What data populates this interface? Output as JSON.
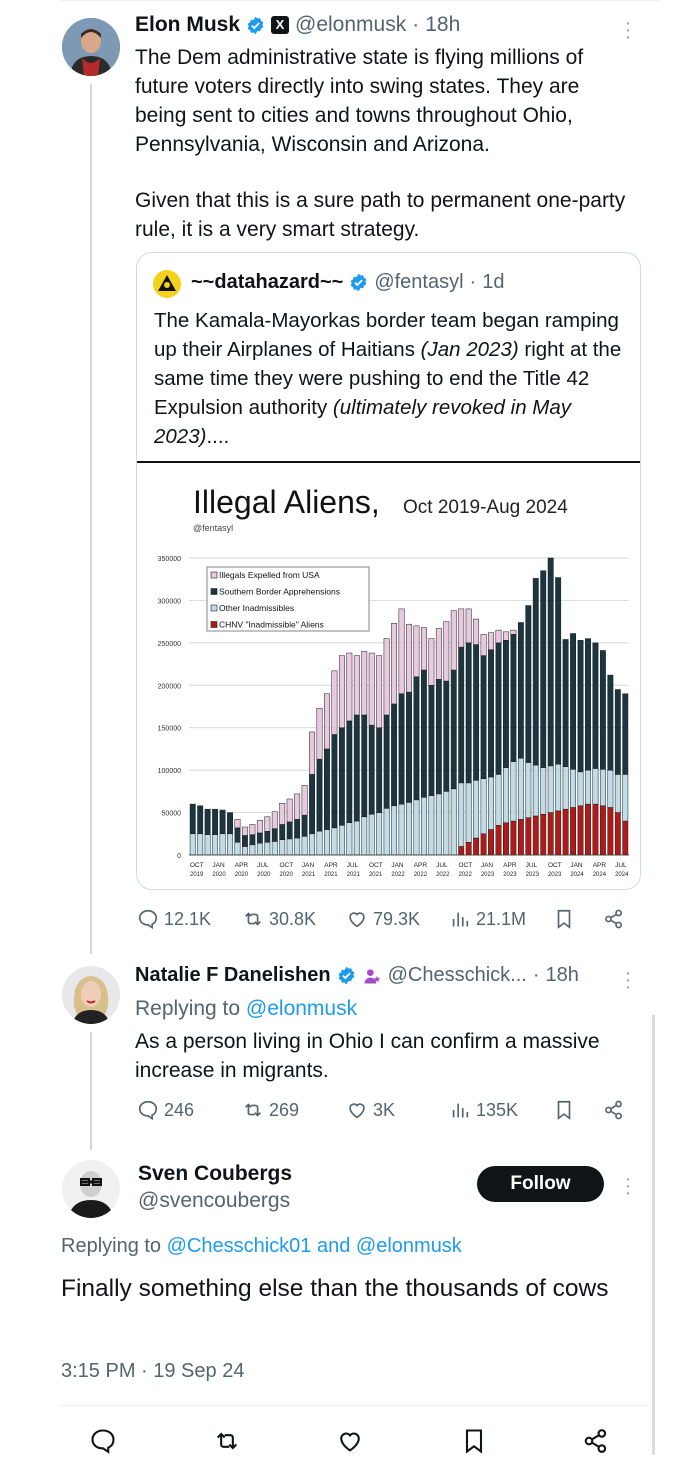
{
  "tweet1": {
    "name": "Elon Musk",
    "handle": "@elonmusk",
    "sep": "·",
    "time": "18h",
    "text1": "The Dem administrative state is flying millions of future voters directly into swing states. They are being sent to cities and towns throughout Ohio, Pennsylvania, Wisconsin and Arizona.",
    "text2": "Given that this is a sure path to permanent one-party rule, it is a very smart strategy.",
    "metrics": {
      "replies": "12.1K",
      "reposts": "30.8K",
      "likes": "79.3K",
      "views": "21.1M"
    }
  },
  "quote": {
    "name": "~~datahazard~~",
    "handle": "@fentasyl",
    "sep": "·",
    "time": "1d",
    "text_a": "The Kamala-Mayorkas border team began ramping up their Airplanes of Haitians ",
    "text_b": "(Jan 2023)",
    "text_c": " right at the same time they were pushing to end the Title 42 Expulsion authority ",
    "text_d": "(ultimately revoked in May 2023)",
    "text_e": "...."
  },
  "tweet2": {
    "name": "Natalie F Danelishen",
    "handle": "@Chesschick...",
    "sep": "·",
    "time": "18h",
    "replying_prefix": "Replying to ",
    "replying_to": "@elonmusk",
    "text": "As a person living in Ohio I can confirm a massive increase in migrants.",
    "metrics": {
      "replies": "246",
      "reposts": "269",
      "likes": "3K",
      "views": "135K"
    }
  },
  "tweet3": {
    "name": "Sven Coubergs",
    "handle": "@svencoubergs",
    "follow_label": "Follow",
    "replying_prefix": "Replying to ",
    "replying_to": "@Chesschick01 and @elonmusk",
    "text": "Finally something else than the thousands of cows",
    "timestamp": "3:15 PM · 19 Sep 24"
  },
  "icons": {
    "reply": "reply-icon",
    "repost": "repost-icon",
    "like": "like-icon",
    "views": "views-icon",
    "bookmark": "bookmark-icon",
    "share": "share-icon",
    "more": "more-dots-icon",
    "verified": "verified-badge-icon"
  },
  "colors": {
    "verified": "#1d9bf0",
    "link": "#1d9bf0",
    "expelled": "#e9c9e0",
    "apprehensions": "#1b3640",
    "other": "#bfdde8",
    "chnv": "#b21a18"
  },
  "chart_data": {
    "type": "bar",
    "stacked": true,
    "title": "Illegal Aliens,",
    "subtitle": "Oct 2019-Aug 2024",
    "credit": "@fentasyl",
    "ylim": [
      0,
      350000
    ],
    "yticks": [
      "0",
      "50000",
      "100000",
      "150000",
      "200000",
      "250000",
      "300000",
      "350000"
    ],
    "ytick_values": [
      0,
      50000,
      100000,
      150000,
      200000,
      250000,
      300000,
      350000
    ],
    "xtick_labels": [
      {
        "month": "OCT",
        "year": "2019",
        "index": 0
      },
      {
        "month": "JAN",
        "year": "2020",
        "index": 3
      },
      {
        "month": "APR",
        "year": "2020",
        "index": 6
      },
      {
        "month": "JUL",
        "year": "2020",
        "index": 9
      },
      {
        "month": "OCT",
        "year": "2020",
        "index": 12
      },
      {
        "month": "JAN",
        "year": "2021",
        "index": 15
      },
      {
        "month": "APR",
        "year": "2021",
        "index": 18
      },
      {
        "month": "JUL",
        "year": "2021",
        "index": 21
      },
      {
        "month": "OCT",
        "year": "2021",
        "index": 24
      },
      {
        "month": "JAN",
        "year": "2022",
        "index": 27
      },
      {
        "month": "APR",
        "year": "2022",
        "index": 30
      },
      {
        "month": "JUL",
        "year": "2022",
        "index": 33
      },
      {
        "month": "OCT",
        "year": "2022",
        "index": 36
      },
      {
        "month": "JAN",
        "year": "2023",
        "index": 39
      },
      {
        "month": "APR",
        "year": "2023",
        "index": 42
      },
      {
        "month": "JUL",
        "year": "2023",
        "index": 45
      },
      {
        "month": "OCT",
        "year": "2023",
        "index": 48
      },
      {
        "month": "JAN",
        "year": "2024",
        "index": 51
      },
      {
        "month": "APR",
        "year": "2024",
        "index": 54
      },
      {
        "month": "JUL",
        "year": "2024",
        "index": 57
      }
    ],
    "legend": [
      "Illegals Expelled from USA",
      "Southern Border Apprehensions",
      "Other Inadmissibles",
      "CHNV \"Inadmissible\" Aliens"
    ],
    "series": [
      {
        "name": "CHNV \"Inadmissible\" Aliens",
        "color": "#b21a18",
        "values": [
          0,
          0,
          0,
          0,
          0,
          0,
          0,
          0,
          0,
          0,
          0,
          0,
          0,
          0,
          0,
          0,
          0,
          0,
          0,
          0,
          0,
          0,
          0,
          0,
          0,
          0,
          0,
          0,
          0,
          0,
          0,
          0,
          0,
          0,
          0,
          0,
          10000,
          15000,
          20000,
          25000,
          30000,
          35000,
          38000,
          40000,
          42000,
          44000,
          46000,
          48000,
          50000,
          52000,
          54000,
          56000,
          58000,
          60000,
          60000,
          58000,
          56000,
          50000,
          40000
        ]
      },
      {
        "name": "Other Inadmissibles",
        "color": "#bfdde8",
        "values": [
          25000,
          25000,
          24000,
          24000,
          25000,
          25000,
          15000,
          10000,
          12000,
          14000,
          15000,
          16000,
          18000,
          19000,
          20000,
          22000,
          25000,
          28000,
          30000,
          32000,
          35000,
          38000,
          40000,
          45000,
          48000,
          50000,
          55000,
          58000,
          60000,
          62000,
          65000,
          68000,
          70000,
          72000,
          75000,
          78000,
          75000,
          70000,
          68000,
          65000,
          62000,
          60000,
          65000,
          70000,
          72000,
          65000,
          60000,
          55000,
          55000,
          55000,
          50000,
          45000,
          40000,
          40000,
          42000,
          43000,
          44000,
          45000,
          55000
        ]
      },
      {
        "name": "Southern Border Apprehensions",
        "color": "#1b3640",
        "values": [
          35000,
          33000,
          30000,
          30000,
          28000,
          25000,
          17000,
          13000,
          12000,
          12000,
          13000,
          15000,
          18000,
          20000,
          22000,
          25000,
          70000,
          85000,
          95000,
          110000,
          115000,
          120000,
          125000,
          120000,
          105000,
          100000,
          110000,
          120000,
          130000,
          130000,
          145000,
          150000,
          130000,
          135000,
          130000,
          140000,
          160000,
          165000,
          160000,
          145000,
          150000,
          155000,
          150000,
          150000,
          160000,
          185000,
          220000,
          232000,
          245000,
          220000,
          150000,
          160000,
          155000,
          155000,
          148000,
          140000,
          112000,
          100000,
          95000
        ]
      },
      {
        "name": "Illegals Expelled from USA",
        "color": "#e9c9e0",
        "values": [
          0,
          0,
          0,
          0,
          0,
          0,
          10000,
          10000,
          12000,
          15000,
          17000,
          20000,
          25000,
          27000,
          30000,
          35000,
          50000,
          60000,
          65000,
          75000,
          85000,
          80000,
          70000,
          75000,
          85000,
          85000,
          90000,
          95000,
          100000,
          80000,
          60000,
          50000,
          55000,
          60000,
          70000,
          70000,
          45000,
          40000,
          30000,
          25000,
          20000,
          15000,
          10000,
          5000,
          0,
          0,
          0,
          0,
          0,
          0,
          0,
          0,
          0,
          0,
          0,
          0,
          0,
          0,
          0
        ]
      }
    ]
  }
}
